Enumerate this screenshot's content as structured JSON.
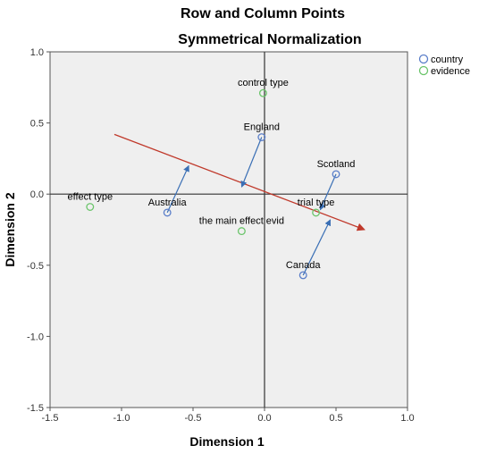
{
  "chart_data": {
    "type": "scatter",
    "title": "Row and Column Points",
    "subtitle": "Symmetrical Normalization",
    "xlabel": "Dimension 1",
    "ylabel": "Dimension 2",
    "xlim": [
      -1.5,
      1.0
    ],
    "ylim": [
      -1.5,
      1.0
    ],
    "xticks": [
      "-1.5",
      "-1.0",
      "-0.5",
      "0.0",
      "0.5",
      "1.0"
    ],
    "yticks": [
      "-1.5",
      "-1.0",
      "-0.5",
      "0.0",
      "0.5",
      "1.0"
    ],
    "xtick_values": [
      -1.5,
      -1.0,
      -0.5,
      0.0,
      0.5,
      1.0
    ],
    "ytick_values": [
      -1.5,
      -1.0,
      -0.5,
      0.0,
      0.5,
      1.0
    ],
    "grid": false,
    "legend_position": "top-right",
    "series": [
      {
        "name": "country",
        "color": "#5a7ec9",
        "points": [
          {
            "label": "England",
            "x": -0.02,
            "y": 0.4
          },
          {
            "label": "Scotland",
            "x": 0.5,
            "y": 0.14
          },
          {
            "label": "Australia",
            "x": -0.68,
            "y": -0.13
          },
          {
            "label": "Canada",
            "x": 0.27,
            "y": -0.57
          }
        ]
      },
      {
        "name": "evidence",
        "color": "#6ac46a",
        "points": [
          {
            "label": "control type",
            "x": -0.01,
            "y": 0.71
          },
          {
            "label": "effect type",
            "x": -1.22,
            "y": -0.09
          },
          {
            "label": "trial type",
            "x": 0.36,
            "y": -0.13
          },
          {
            "label": "the main effect evid",
            "x": -0.16,
            "y": -0.26
          }
        ]
      }
    ],
    "annotations": {
      "trend_arrow": {
        "color": "#c0392b",
        "from": [
          -1.05,
          0.42
        ],
        "to": [
          0.7,
          -0.25
        ]
      },
      "projection_arrows": {
        "color": "#3a6fb5",
        "arrows": [
          {
            "from": [
              -0.68,
              -0.13
            ],
            "to": [
              -0.53,
              0.2
            ]
          },
          {
            "from": [
              -0.02,
              0.4
            ],
            "to": [
              -0.16,
              0.05
            ]
          },
          {
            "from": [
              0.5,
              0.14
            ],
            "to": [
              0.39,
              -0.11
            ]
          },
          {
            "from": [
              0.27,
              -0.57
            ],
            "to": [
              0.46,
              -0.18
            ]
          }
        ]
      }
    }
  }
}
